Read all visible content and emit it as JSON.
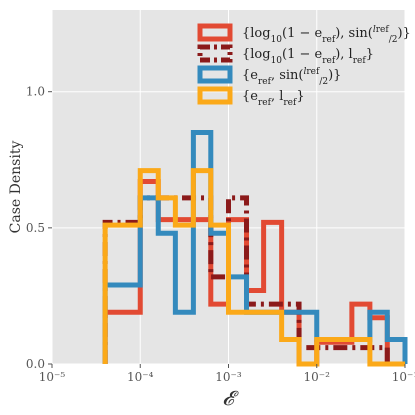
{
  "chart_data": {
    "type": "histogram-step",
    "xlabel": "𝓔",
    "ylabel": "Case Density",
    "x_scale": "log",
    "xlim": [
      1e-05,
      0.1
    ],
    "ylim": [
      0.0,
      1.3
    ],
    "x_ticks": [
      1e-05,
      0.0001,
      0.001,
      0.01,
      0.1
    ],
    "x_tick_labels": [
      "10⁻⁵",
      "10⁻⁴",
      "10⁻³",
      "10⁻²",
      "10⁻¹"
    ],
    "y_ticks": [
      0.0,
      0.5,
      1.0
    ],
    "y_tick_labels": [
      "0.0",
      "0.5",
      "1.0"
    ],
    "grid": true,
    "background": "#e5e5e5",
    "legend_position": "top-right",
    "bin_edges": [
      4e-05,
      6.3e-05,
      0.0001,
      0.00016,
      0.00025,
      0.0004,
      0.00063,
      0.001,
      0.0016,
      0.0025,
      0.004,
      0.0063,
      0.01,
      0.016,
      0.025,
      0.04,
      0.063,
      0.1
    ],
    "series": [
      {
        "name": "{log₁₀(1 − e_ref), sin(l_ref/2)}",
        "legend_parts": {
          "a": "{log",
          "sub1": "10",
          "b": "(1 − e",
          "sub2": "ref",
          "c": "), sin(",
          "num": "l",
          "num_sub": "ref",
          "den": "2",
          "d": ")}"
        },
        "color": "#E24A33",
        "style": "solid",
        "values": [
          0.19,
          0.19,
          0.67,
          0.53,
          0.53,
          0.53,
          0.22,
          0.53,
          0.27,
          0.52,
          0.19,
          0.0,
          0.08,
          0.08,
          0.22,
          0.17,
          0.0
        ]
      },
      {
        "name": "{log₁₀(1 − e_ref), l_ref}",
        "legend_parts": {
          "a": "{log",
          "sub1": "10",
          "b": "(1 − e",
          "sub2": "ref",
          "c": "), l",
          "sub3": "ref",
          "d": "}"
        },
        "color": "#8B1A1A",
        "style": "dashed",
        "values": [
          0.52,
          0.52,
          0.61,
          0.61,
          0.61,
          0.61,
          0.32,
          0.61,
          0.22,
          0.22,
          0.22,
          0.06,
          0.06,
          0.06,
          0.06,
          0.06,
          0.0
        ]
      },
      {
        "name": "{e_ref, sin(l_ref/2)}",
        "legend_parts": {
          "a": "{e",
          "sub1": "ref",
          "b": ", sin(",
          "num": "l",
          "num_sub": "ref",
          "den": "2",
          "c": ")}"
        },
        "color": "#348ABD",
        "style": "solid",
        "values": [
          0.29,
          0.29,
          0.61,
          0.48,
          0.19,
          0.85,
          0.48,
          0.32,
          0.19,
          0.19,
          0.19,
          0.19,
          0.09,
          0.09,
          0.09,
          0.19,
          0.09
        ]
      },
      {
        "name": "{e_ref, l_ref}",
        "legend_parts": {
          "a": "{e",
          "sub1": "ref",
          "b": ", l",
          "sub2": "ref",
          "c": "}"
        },
        "color": "#FBA919",
        "style": "solid",
        "values": [
          0.51,
          0.51,
          0.71,
          0.61,
          0.51,
          0.71,
          0.51,
          0.19,
          0.19,
          0.19,
          0.09,
          0.0,
          0.09,
          0.09,
          0.09,
          0.0,
          0.0
        ]
      }
    ]
  }
}
